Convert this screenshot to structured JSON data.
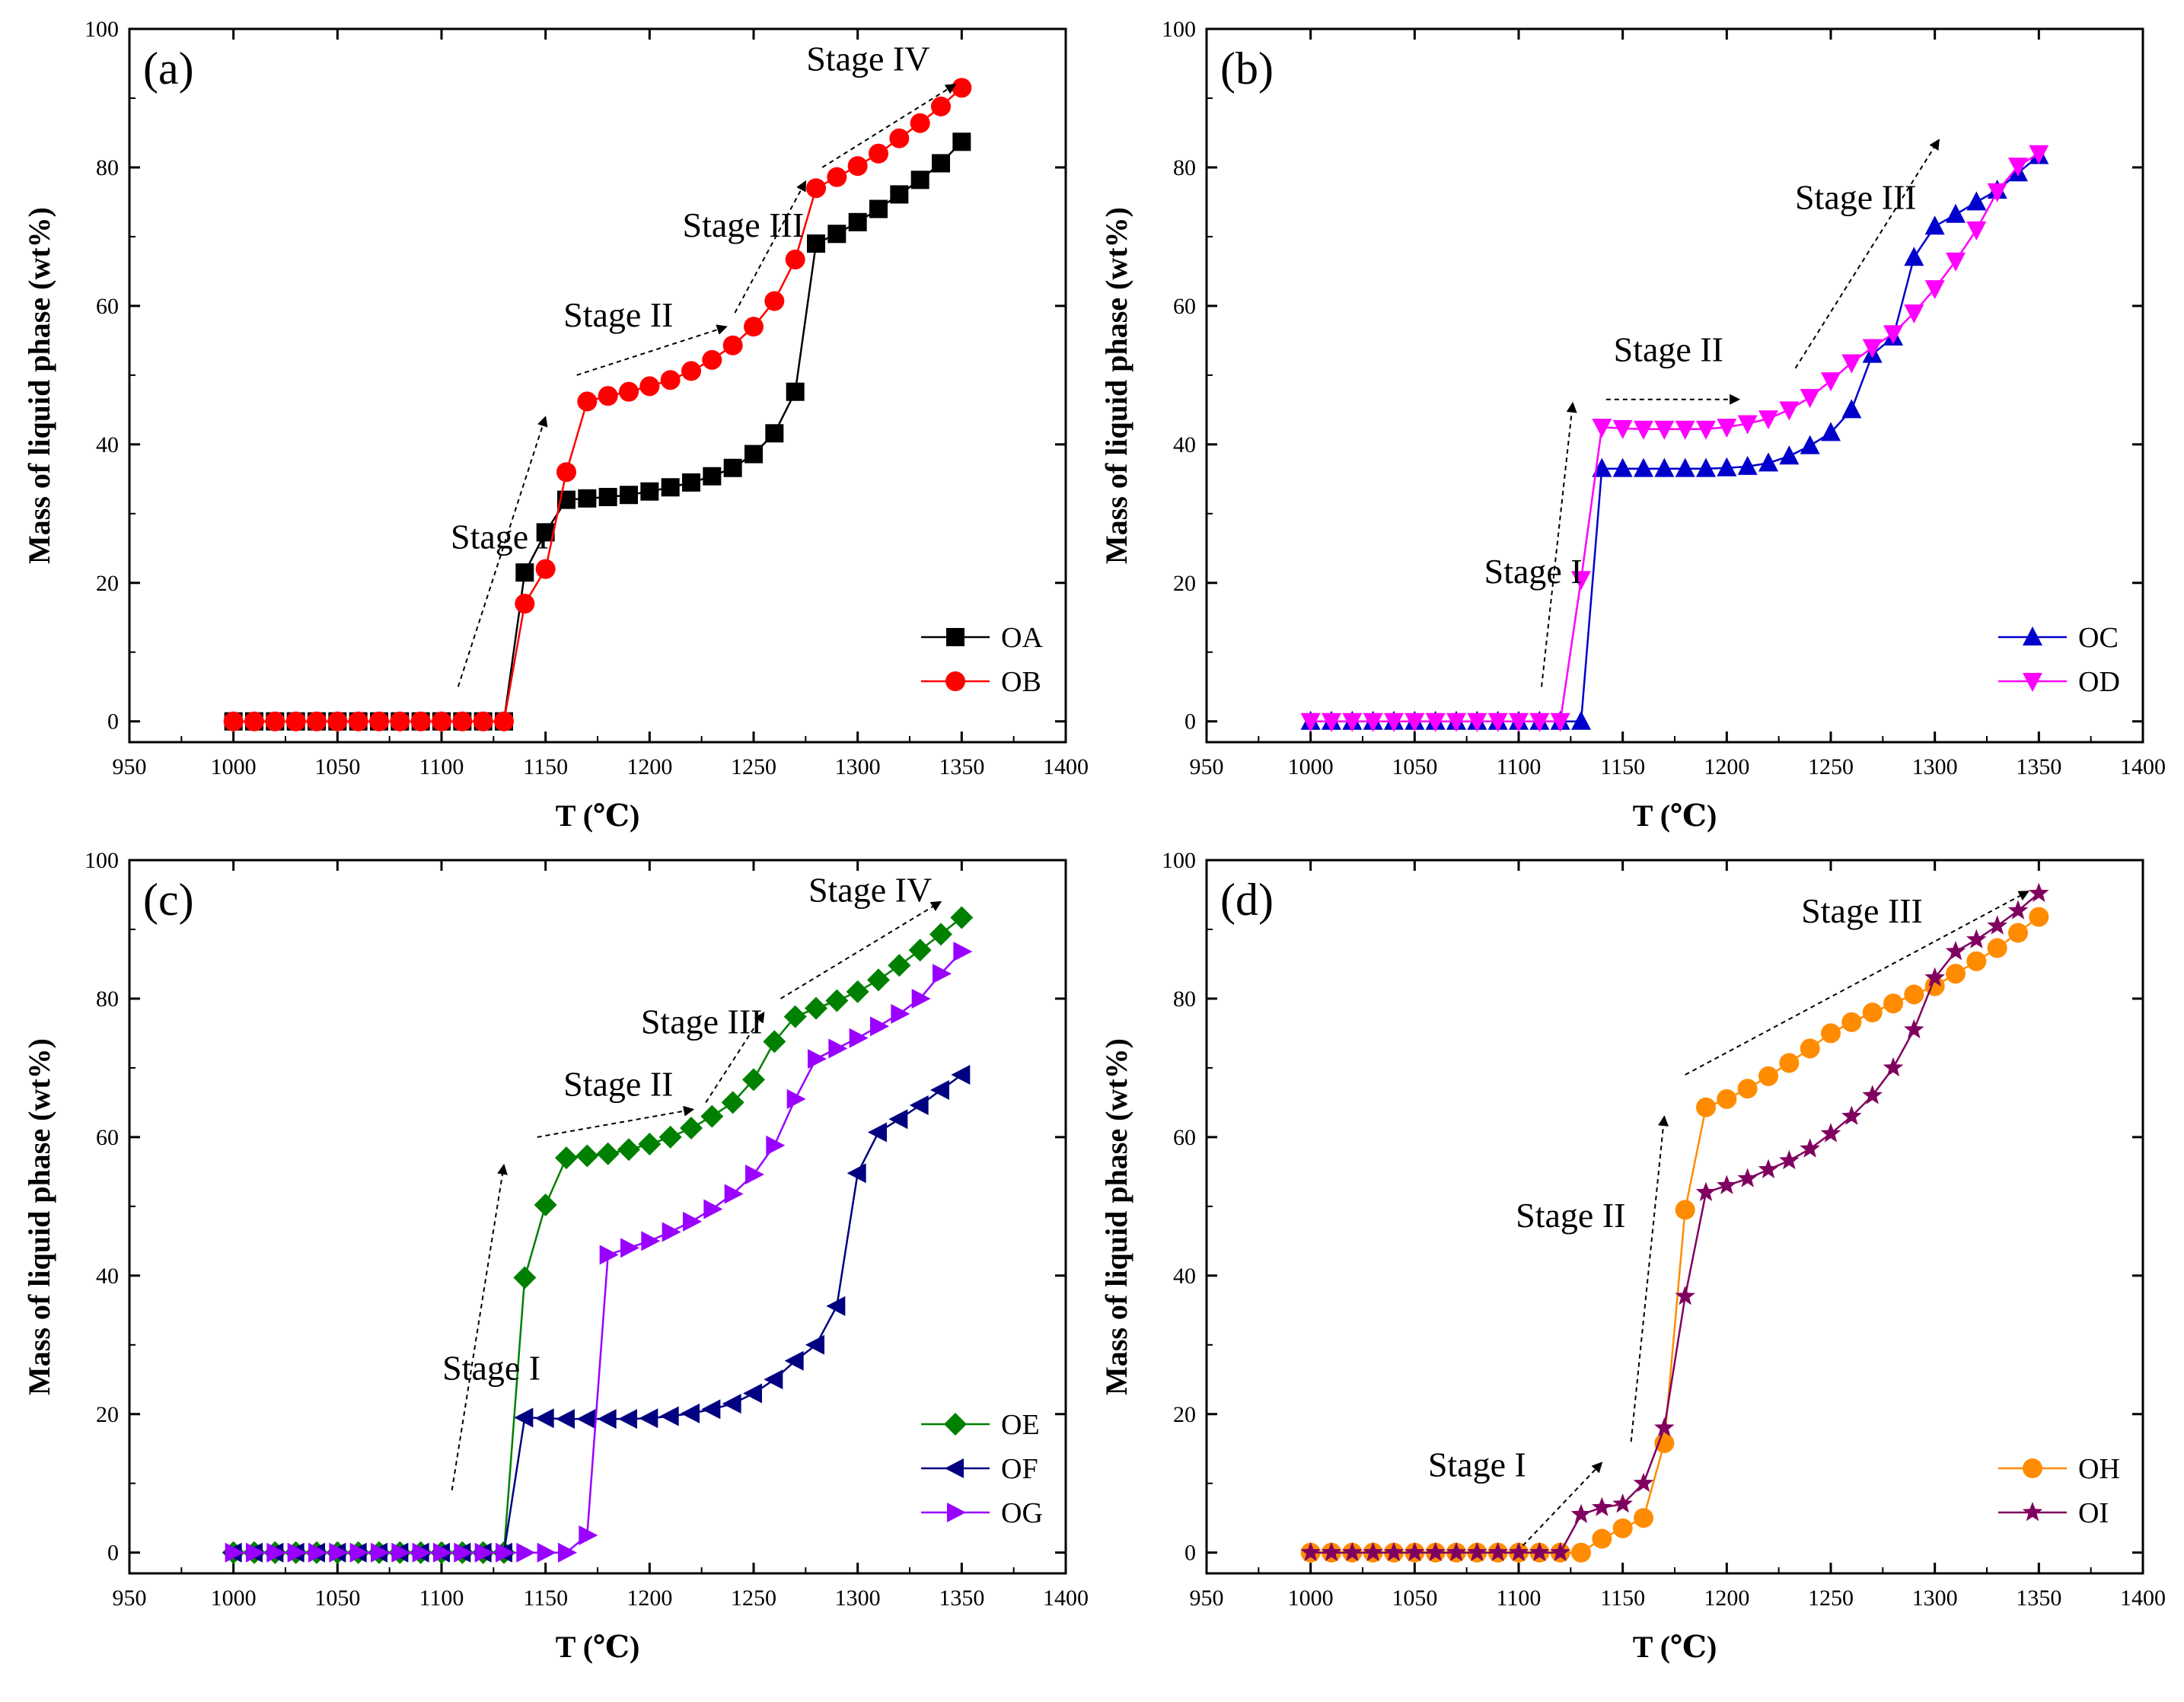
{
  "chart_data": [
    {
      "type": "line",
      "panel_label": "(a)",
      "xlabel": "T (℃)",
      "ylabel": "Mass of liquid phase (wt%)",
      "xlim": [
        950,
        1400
      ],
      "ylim": [
        -3,
        100
      ],
      "xticks": [
        "950",
        "1000",
        "1050",
        "1100",
        "1150",
        "1200",
        "1250",
        "1300",
        "1350",
        "1400"
      ],
      "yticks": [
        "0",
        "20",
        "40",
        "60",
        "80",
        "100"
      ],
      "legend_position": "bottom-right",
      "series": [
        {
          "name": "OA",
          "color": "#000000",
          "marker": "square",
          "x": [
            1000,
            1010,
            1020,
            1030,
            1040,
            1050,
            1060,
            1070,
            1080,
            1090,
            1100,
            1110,
            1120,
            1130,
            1140,
            1150,
            1160,
            1170,
            1180,
            1190,
            1200,
            1210,
            1220,
            1230,
            1240,
            1250,
            1260,
            1270,
            1280,
            1290,
            1300,
            1310,
            1320,
            1330,
            1340,
            1350
          ],
          "y": [
            0,
            0,
            0,
            0,
            0,
            0,
            0,
            0,
            0,
            0,
            0,
            0,
            0,
            0,
            21.5,
            27.3,
            32,
            32.2,
            32.4,
            32.7,
            33.2,
            33.8,
            34.5,
            35.4,
            36.6,
            38.6,
            41.6,
            47.6,
            69,
            70.4,
            72.1,
            74,
            76.1,
            78.2,
            80.6,
            83.7
          ]
        },
        {
          "name": "OB",
          "color": "#ff0000",
          "marker": "circle",
          "x": [
            1000,
            1010,
            1020,
            1030,
            1040,
            1050,
            1060,
            1070,
            1080,
            1090,
            1100,
            1110,
            1120,
            1130,
            1140,
            1150,
            1160,
            1170,
            1180,
            1190,
            1200,
            1210,
            1220,
            1230,
            1240,
            1250,
            1260,
            1270,
            1280,
            1290,
            1300,
            1310,
            1320,
            1330,
            1340,
            1350
          ],
          "y": [
            0,
            0,
            0,
            0,
            0,
            0,
            0,
            0,
            0,
            0,
            0,
            0,
            0,
            0,
            17,
            22,
            36,
            46.2,
            47,
            47.6,
            48.4,
            49.3,
            50.6,
            52.2,
            54.3,
            57,
            60.7,
            66.7,
            77,
            78.6,
            80.2,
            82,
            84.2,
            86.4,
            88.8,
            91.5
          ]
        }
      ],
      "annotations": [
        {
          "text": "Stage I",
          "x": 1128,
          "y": 25
        },
        {
          "text": "Stage II",
          "x": 1185,
          "y": 57
        },
        {
          "text": "Stage III",
          "x": 1245,
          "y": 70
        },
        {
          "text": "Stage IV",
          "x": 1305,
          "y": 94
        }
      ],
      "arrows": [
        {
          "from": [
            1108,
            5
          ],
          "to": [
            1150,
            44
          ]
        },
        {
          "from": [
            1165,
            50
          ],
          "to": [
            1237,
            57
          ]
        },
        {
          "from": [
            1241,
            59
          ],
          "to": [
            1275,
            78
          ]
        },
        {
          "from": [
            1283,
            80
          ],
          "to": [
            1347,
            92
          ]
        }
      ]
    },
    {
      "type": "line",
      "panel_label": "(b)",
      "xlabel": "T (℃)",
      "ylabel": "Mass of liquid phase (wt%)",
      "xlim": [
        950,
        1400
      ],
      "ylim": [
        -3,
        100
      ],
      "xticks": [
        "950",
        "1000",
        "1050",
        "1100",
        "1150",
        "1200",
        "1250",
        "1300",
        "1350",
        "1400"
      ],
      "yticks": [
        "0",
        "20",
        "40",
        "60",
        "80",
        "100"
      ],
      "legend_position": "bottom-right",
      "series": [
        {
          "name": "OC",
          "color": "#0000cc",
          "marker": "triangle-up",
          "x": [
            1000,
            1010,
            1020,
            1030,
            1040,
            1050,
            1060,
            1070,
            1080,
            1090,
            1100,
            1110,
            1120,
            1130,
            1140,
            1150,
            1160,
            1170,
            1180,
            1190,
            1200,
            1210,
            1220,
            1230,
            1240,
            1250,
            1260,
            1270,
            1280,
            1290,
            1300,
            1310,
            1320,
            1330,
            1340,
            1350
          ],
          "y": [
            0,
            0,
            0,
            0,
            0,
            0,
            0,
            0,
            0,
            0,
            0,
            0,
            0,
            0,
            36.5,
            36.5,
            36.5,
            36.5,
            36.5,
            36.5,
            36.6,
            36.8,
            37.3,
            38.3,
            39.8,
            41.7,
            45,
            53,
            55.5,
            67,
            71.5,
            73.2,
            75,
            76.7,
            79.2,
            81.7
          ]
        },
        {
          "name": "OD",
          "color": "#ff00ff",
          "marker": "triangle-down",
          "x": [
            1000,
            1010,
            1020,
            1030,
            1040,
            1050,
            1060,
            1070,
            1080,
            1090,
            1100,
            1110,
            1120,
            1130,
            1140,
            1150,
            1160,
            1170,
            1180,
            1190,
            1200,
            1210,
            1220,
            1230,
            1240,
            1250,
            1260,
            1270,
            1280,
            1290,
            1300,
            1310,
            1320,
            1330,
            1340,
            1350
          ],
          "y": [
            0,
            0,
            0,
            0,
            0,
            0,
            0,
            0,
            0,
            0,
            0,
            0,
            0,
            20.5,
            42.5,
            42.3,
            42.2,
            42.2,
            42.2,
            42.2,
            42.5,
            43,
            43.7,
            45,
            46.8,
            49.2,
            51.8,
            54,
            56,
            59,
            62.5,
            66.5,
            71,
            76.5,
            80.2,
            82
          ]
        }
      ],
      "annotations": [
        {
          "text": "Stage I",
          "x": 1107,
          "y": 20
        },
        {
          "text": "Stage II",
          "x": 1172,
          "y": 52
        },
        {
          "text": "Stage III",
          "x": 1262,
          "y": 74
        }
      ],
      "arrows": [
        {
          "from": [
            1111,
            5
          ],
          "to": [
            1126,
            46
          ]
        },
        {
          "from": [
            1142,
            46.5
          ],
          "to": [
            1206,
            46.5
          ]
        },
        {
          "from": [
            1233,
            51
          ],
          "to": [
            1302,
            84
          ]
        }
      ]
    },
    {
      "type": "line",
      "panel_label": "(c)",
      "xlabel": "T (℃)",
      "ylabel": "Mass of liquid phase (wt%)",
      "xlim": [
        950,
        1400
      ],
      "ylim": [
        -3,
        100
      ],
      "xticks": [
        "950",
        "1000",
        "1050",
        "1100",
        "1150",
        "1200",
        "1250",
        "1300",
        "1350",
        "1400"
      ],
      "yticks": [
        "0",
        "20",
        "40",
        "60",
        "80",
        "100"
      ],
      "legend_position": "bottom-right",
      "series": [
        {
          "name": "OE",
          "color": "#008000",
          "marker": "diamond",
          "x": [
            1000,
            1010,
            1020,
            1030,
            1040,
            1050,
            1060,
            1070,
            1080,
            1090,
            1100,
            1110,
            1120,
            1130,
            1140,
            1150,
            1160,
            1170,
            1180,
            1190,
            1200,
            1210,
            1220,
            1230,
            1240,
            1250,
            1260,
            1270,
            1280,
            1290,
            1300,
            1310,
            1320,
            1330,
            1340,
            1350
          ],
          "y": [
            0,
            0,
            0,
            0,
            0,
            0,
            0,
            0,
            0,
            0,
            0,
            0,
            0,
            0,
            39.7,
            50.2,
            57,
            57.3,
            57.6,
            58.2,
            59,
            60,
            61.3,
            63,
            65,
            68.3,
            73.8,
            77.4,
            78.6,
            79.7,
            81,
            82.7,
            84.8,
            87,
            89.3,
            91.7
          ]
        },
        {
          "name": "OF",
          "color": "#000080",
          "marker": "triangle-left",
          "x": [
            1000,
            1010,
            1020,
            1030,
            1040,
            1050,
            1060,
            1070,
            1080,
            1090,
            1100,
            1110,
            1120,
            1130,
            1140,
            1150,
            1160,
            1170,
            1180,
            1190,
            1200,
            1210,
            1220,
            1230,
            1240,
            1250,
            1260,
            1270,
            1280,
            1290,
            1300,
            1310,
            1320,
            1330,
            1340,
            1350
          ],
          "y": [
            0,
            0,
            0,
            0,
            0,
            0,
            0,
            0,
            0,
            0,
            0,
            0,
            0,
            0,
            19.5,
            19.4,
            19.3,
            19.3,
            19.3,
            19.3,
            19.4,
            19.7,
            20.1,
            20.7,
            21.5,
            23,
            25,
            27.7,
            30,
            35.6,
            54.8,
            60.7,
            62.6,
            64.6,
            66.8,
            69
          ]
        },
        {
          "name": "OG",
          "color": "#9900ff",
          "marker": "triangle-right",
          "x": [
            1000,
            1010,
            1020,
            1030,
            1040,
            1050,
            1060,
            1070,
            1080,
            1090,
            1100,
            1110,
            1120,
            1130,
            1140,
            1150,
            1160,
            1170,
            1180,
            1190,
            1200,
            1210,
            1220,
            1230,
            1240,
            1250,
            1260,
            1270,
            1280,
            1290,
            1300,
            1310,
            1320,
            1330,
            1340,
            1350
          ],
          "y": [
            0,
            0,
            0,
            0,
            0,
            0,
            0,
            0,
            0,
            0,
            0,
            0,
            0,
            0,
            0,
            0,
            0,
            2.5,
            43,
            44,
            45,
            46.3,
            47.8,
            49.6,
            51.8,
            54.6,
            58.8,
            65.5,
            71.3,
            72.8,
            74.3,
            76,
            77.8,
            80,
            83.6,
            86.8
          ]
        }
      ],
      "annotations": [
        {
          "text": "Stage I",
          "x": 1124,
          "y": 25
        },
        {
          "text": "Stage II",
          "x": 1185,
          "y": 66
        },
        {
          "text": "Stage III",
          "x": 1225,
          "y": 75
        },
        {
          "text": "Stage IV",
          "x": 1306,
          "y": 94
        }
      ],
      "arrows": [
        {
          "from": [
            1105,
            9
          ],
          "to": [
            1130,
            56
          ]
        },
        {
          "from": [
            1146,
            60
          ],
          "to": [
            1221,
            64
          ]
        },
        {
          "from": [
            1227,
            65
          ],
          "to": [
            1255,
            78
          ]
        },
        {
          "from": [
            1263,
            80
          ],
          "to": [
            1340,
            94
          ]
        }
      ]
    },
    {
      "type": "line",
      "panel_label": "(d)",
      "xlabel": "T (℃)",
      "ylabel": "Mass of liquid phase (wt%)",
      "xlim": [
        950,
        1400
      ],
      "ylim": [
        -3,
        100
      ],
      "xticks": [
        "950",
        "1000",
        "1050",
        "1100",
        "1150",
        "1200",
        "1250",
        "1300",
        "1350",
        "1400"
      ],
      "yticks": [
        "0",
        "20",
        "40",
        "60",
        "80",
        "100"
      ],
      "legend_position": "bottom-right",
      "series": [
        {
          "name": "OH",
          "color": "#ff8c00",
          "marker": "circle",
          "x": [
            1000,
            1010,
            1020,
            1030,
            1040,
            1050,
            1060,
            1070,
            1080,
            1090,
            1100,
            1110,
            1120,
            1130,
            1140,
            1150,
            1160,
            1170,
            1180,
            1190,
            1200,
            1210,
            1220,
            1230,
            1240,
            1250,
            1260,
            1270,
            1280,
            1290,
            1300,
            1310,
            1320,
            1330,
            1340,
            1350
          ],
          "y": [
            0,
            0,
            0,
            0,
            0,
            0,
            0,
            0,
            0,
            0,
            0,
            0,
            0,
            0,
            2,
            3.5,
            5,
            15.8,
            49.5,
            64.3,
            65.5,
            67,
            68.8,
            70.7,
            72.8,
            75,
            76.6,
            78,
            79.3,
            80.6,
            81.8,
            83.6,
            85.4,
            87.3,
            89.5,
            91.8
          ]
        },
        {
          "name": "OI",
          "color": "#800060",
          "marker": "star",
          "x": [
            1000,
            1010,
            1020,
            1030,
            1040,
            1050,
            1060,
            1070,
            1080,
            1090,
            1100,
            1110,
            1120,
            1130,
            1140,
            1150,
            1160,
            1170,
            1180,
            1190,
            1200,
            1210,
            1220,
            1230,
            1240,
            1250,
            1260,
            1270,
            1280,
            1290,
            1300,
            1310,
            1320,
            1330,
            1340,
            1350
          ],
          "y": [
            0,
            0,
            0,
            0,
            0,
            0,
            0,
            0,
            0,
            0,
            0,
            0,
            0,
            5.5,
            6.5,
            7,
            10,
            18,
            37,
            52,
            53,
            54,
            55.3,
            56.6,
            58.3,
            60.5,
            63,
            66,
            70,
            75.5,
            83,
            86.8,
            88.5,
            90.5,
            92.7,
            95.2
          ]
        }
      ],
      "annotations": [
        {
          "text": "Stage I",
          "x": 1080,
          "y": 11
        },
        {
          "text": "Stage II",
          "x": 1125,
          "y": 47
        },
        {
          "text": "Stage III",
          "x": 1265,
          "y": 91
        }
      ],
      "arrows": [
        {
          "from": [
            1102,
            1
          ],
          "to": [
            1140,
            13
          ]
        },
        {
          "from": [
            1154,
            16
          ],
          "to": [
            1170,
            63
          ]
        },
        {
          "from": [
            1180,
            69
          ],
          "to": [
            1345,
            95.5
          ]
        }
      ]
    }
  ]
}
